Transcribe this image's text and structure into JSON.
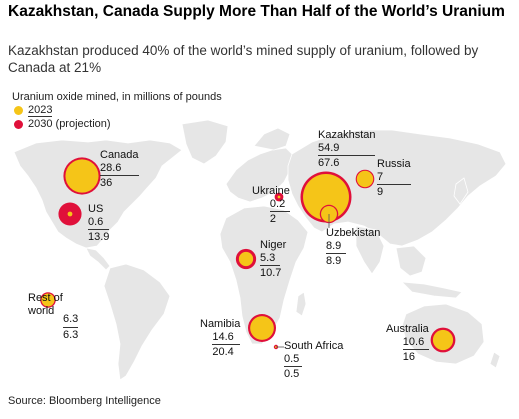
{
  "header": {
    "title": "Kazakhstan, Canada Supply More Than Half of the World’s Uranium",
    "subtitle": "Kazakhstan produced 40% of the world’s mined supply of uranium, followed by Canada at 21%"
  },
  "legend": {
    "heading": "Uranium oxide mined, in millions of pounds",
    "items": [
      {
        "label": "2023",
        "color": "#f5c518"
      },
      {
        "label": "2030 (projection)",
        "color": "#e0103a"
      }
    ]
  },
  "colors": {
    "map_land": "#e6e6e6",
    "bubble_2023": "#f5c518",
    "bubble_2030": "#e0103a"
  },
  "chart_data": {
    "type": "bubble-map",
    "series": [
      {
        "name": "2023",
        "field": "v2023"
      },
      {
        "name": "2030 (projection)",
        "field": "v2030"
      }
    ],
    "countries": [
      {
        "name": "Kazakhstan",
        "v2023": "54.9",
        "v2030": "67.6"
      },
      {
        "name": "Canada",
        "v2023": "28.6",
        "v2030": "36"
      },
      {
        "name": "Russia",
        "v2023": "7",
        "v2030": "9"
      },
      {
        "name": "Ukraine",
        "v2023": "0.2",
        "v2030": "2"
      },
      {
        "name": "US",
        "v2023": "0.6",
        "v2030": "13.9"
      },
      {
        "name": "Uzbekistan",
        "v2023": "8.9",
        "v2030": "8.9"
      },
      {
        "name": "Niger",
        "v2023": "5.3",
        "v2030": "10.7"
      },
      {
        "name": "Rest of world",
        "v2023": "6.3",
        "v2030": "6.3"
      },
      {
        "name": "Namibia",
        "v2023": "14.6",
        "v2030": "20.4"
      },
      {
        "name": "South Africa",
        "v2023": "0.5",
        "v2030": "0.5"
      },
      {
        "name": "Australia",
        "v2023": "10.6",
        "v2030": "16"
      }
    ]
  },
  "source": "Source: Bloomberg Intelligence"
}
